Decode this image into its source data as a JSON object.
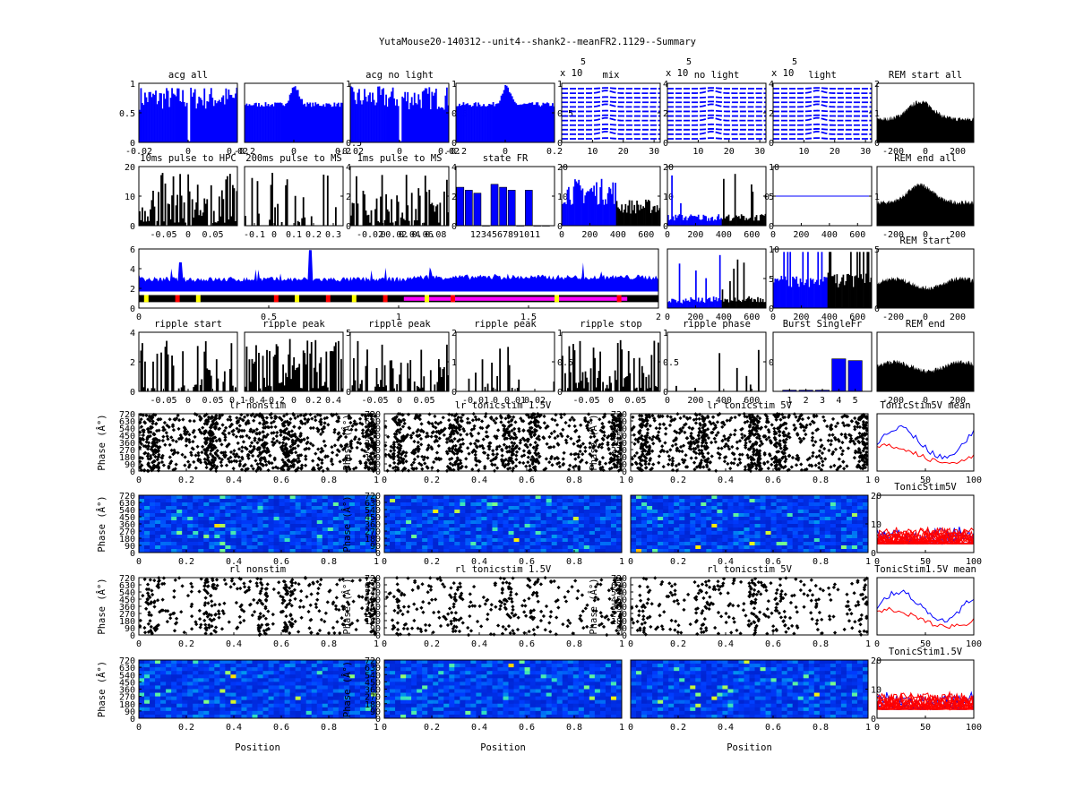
{
  "title": "YutaMouse20-140312--unit4--shank2--meanFR2.1129--Summary",
  "colors": {
    "blue": "#0000ff",
    "black": "#000000",
    "red": "#ff0000",
    "yellow": "#ffff00",
    "magenta": "#ff00ff",
    "darkblue": "#000080",
    "cyan": "#00c0c0"
  },
  "chart_data": [
    {
      "id": "acg_all",
      "type": "bar",
      "title": "acg all",
      "color": "blue",
      "xlim": [
        -0.02,
        0.02
      ],
      "ylim": [
        0,
        1
      ],
      "xticks": [
        "-0.02",
        "0",
        "0.02"
      ],
      "yticks": [
        "0",
        "0.5",
        "1"
      ],
      "shape": "dip"
    },
    {
      "id": "acg_all_wide",
      "type": "bar",
      "title": "",
      "color": "blue",
      "xlim": [
        -0.2,
        0.2
      ],
      "ylim": [
        0,
        1
      ],
      "xticks": [
        "-0.2",
        "0",
        "0.2"
      ],
      "yticks": [],
      "right_yticks": [
        "0.5",
        "1"
      ],
      "shape": "peak"
    },
    {
      "id": "acg_no_light",
      "type": "bar",
      "title": "acg no light",
      "color": "blue",
      "xlim": [
        -0.02,
        0.02
      ],
      "ylim": [
        0,
        1
      ],
      "xticks": [
        "-0.02",
        "0",
        "0.02"
      ],
      "yticks": [],
      "right_yticks": [
        "0",
        "0.5",
        "1"
      ],
      "shape": "dip"
    },
    {
      "id": "acg_no_light_wide",
      "type": "bar",
      "title": "",
      "color": "blue",
      "xlim": [
        -0.2,
        0.2
      ],
      "ylim": [
        0,
        1
      ],
      "xticks": [
        "-0.2",
        "0",
        "0.2"
      ],
      "yticks": [],
      "right_yticks": [
        "0",
        "0.5",
        "1"
      ],
      "shape": "peak"
    },
    {
      "id": "wave_mix",
      "type": "waveform",
      "title": "mix",
      "exponent": "x 10",
      "exp_power": "5",
      "xticks": [
        "10",
        "20",
        "30"
      ],
      "right_yticks": [
        "0",
        "2",
        "4"
      ],
      "ylim": [
        0,
        4
      ],
      "xlim": [
        0,
        32
      ]
    },
    {
      "id": "wave_no_light",
      "type": "waveform",
      "title": "no light",
      "exponent": "x 10",
      "exp_power": "5",
      "xticks": [
        "10",
        "20",
        "30"
      ],
      "right_yticks": [
        "0",
        "2",
        "4"
      ],
      "ylim": [
        0,
        4
      ],
      "xlim": [
        0,
        32
      ]
    },
    {
      "id": "wave_light",
      "type": "waveform",
      "title": "light",
      "exponent": "x 10",
      "exp_power": "5",
      "xticks": [
        "10",
        "20",
        "30"
      ],
      "right_yticks": [
        "0",
        "1",
        "2"
      ],
      "ylim": [
        0,
        2
      ],
      "xlim": [
        0,
        32
      ]
    },
    {
      "id": "rem_start_all",
      "type": "area",
      "title": "REM start all",
      "color": "black",
      "xticks": [
        "-200",
        "0",
        "200"
      ],
      "xlim": [
        -300,
        300
      ],
      "shape": "hump"
    },
    {
      "id": "pulse_hpc",
      "type": "bar",
      "title": "10ms pulse to HPC",
      "color": "black",
      "xlim": [
        -0.1,
        0.1
      ],
      "ylim": [
        0,
        20
      ],
      "xticks": [
        "-0.05",
        "0",
        "0.05"
      ],
      "yticks": [
        "0",
        "10",
        "20"
      ],
      "density": 0.85
    },
    {
      "id": "pulse_ms_200",
      "type": "bar",
      "title": "200ms pulse to MS",
      "color": "black",
      "xlim": [
        -0.15,
        0.35
      ],
      "ylim": [
        0,
        4
      ],
      "xticks": [
        "-0.1",
        "0",
        "0.1",
        "0.2",
        "0.3"
      ],
      "right_yticks": [
        "0",
        "2",
        "4"
      ],
      "density": 0.4
    },
    {
      "id": "pulse_ms_1",
      "type": "bar",
      "title": "1ms pulse to MS",
      "color": "black",
      "xlim": [
        -0.05,
        0.1
      ],
      "ylim": [
        0,
        4
      ],
      "xticks": [
        "-0.02",
        "0",
        "0.02",
        "0.04",
        "0.06",
        "0.08"
      ],
      "right_yticks": [
        "0",
        "2",
        "4"
      ],
      "density": 0.8
    },
    {
      "id": "state_fr",
      "type": "bar",
      "title": "state FR",
      "color": "blue",
      "categories": [
        "1",
        "2",
        "3",
        "4",
        "5",
        "6",
        "7",
        "8",
        "9",
        "10",
        "11"
      ],
      "values": [
        13,
        12,
        11,
        0,
        14,
        13,
        12,
        0,
        12,
        0,
        0
      ],
      "ylim": [
        0,
        20
      ],
      "right_yticks": [
        "0",
        "10",
        "20"
      ],
      "xtick_text": "1234567891011"
    },
    {
      "id": "fr_time_1",
      "type": "bar",
      "title": "",
      "series_colors": [
        "blue",
        "black"
      ],
      "split": 380,
      "xlim": [
        0,
        700
      ],
      "ylim": [
        0,
        20
      ],
      "xticks": [
        "0",
        "200",
        "400",
        "600"
      ],
      "right_yticks": [
        "0",
        "10",
        "20"
      ]
    },
    {
      "id": "fr_time_2",
      "type": "bar",
      "title": "",
      "series_colors": [
        "blue",
        "black"
      ],
      "split": 380,
      "xlim": [
        0,
        700
      ],
      "ylim": [
        0,
        10
      ],
      "xticks": [
        "0",
        "200",
        "400",
        "600"
      ],
      "right_yticks": [
        "0",
        "5",
        "10"
      ]
    },
    {
      "id": "fr_time_3",
      "type": "line",
      "title": "",
      "color": "blue",
      "xlim": [
        0,
        700
      ],
      "ylim": [
        0,
        2
      ],
      "flat_value": 1,
      "xticks": [
        "0",
        "200",
        "400",
        "600"
      ],
      "yticks": [
        "0"
      ],
      "right_yticks": [
        "1"
      ]
    },
    {
      "id": "rem_end_all",
      "type": "area",
      "title": "REM end all",
      "color": "black",
      "xticks": [
        "-200",
        "0",
        "200"
      ],
      "xlim": [
        -300,
        300
      ],
      "shape": "hump"
    },
    {
      "id": "session_trace",
      "type": "area",
      "title": "",
      "color": "blue",
      "xlim": [
        0,
        2
      ],
      "ylim": [
        -1,
        7
      ],
      "xticks": [
        "0",
        "0.5",
        "1",
        "1.5",
        "2"
      ],
      "yticks": [
        "0",
        "2",
        "4",
        "6"
      ],
      "xtick_suffix": "x 10^4"
    },
    {
      "id": "fr_time_4",
      "type": "bar",
      "title": "",
      "series_colors": [
        "blue",
        "black"
      ],
      "split": 380,
      "xlim": [
        0,
        700
      ],
      "ylim": [
        0,
        10
      ],
      "xticks": [
        "0",
        "200",
        "400",
        "600"
      ],
      "right_yticks": [
        "0",
        "5",
        "10"
      ]
    },
    {
      "id": "fr_time_5",
      "type": "bar",
      "title": "",
      "series_colors": [
        "blue",
        "black"
      ],
      "split": 380,
      "xlim": [
        0,
        700
      ],
      "ylim": [
        0,
        5
      ],
      "xticks": [
        "0",
        "200",
        "400",
        "600"
      ],
      "right_yticks": [
        "0",
        "5"
      ]
    },
    {
      "id": "rem_start",
      "type": "area",
      "title": "REM start",
      "color": "black",
      "xticks": [
        "-200",
        "0",
        "200"
      ],
      "xlim": [
        -300,
        300
      ],
      "shape": "flat"
    },
    {
      "id": "ripple_start",
      "type": "bar",
      "title": "ripple start",
      "color": "black",
      "xlim": [
        -0.1,
        0.1
      ],
      "ylim": [
        0,
        4
      ],
      "xticks": [
        "-0.05",
        "0",
        "0.05",
        "0.1"
      ],
      "yticks": [
        "0",
        "2",
        "4"
      ],
      "density": 0.5
    },
    {
      "id": "ripple_peak_1",
      "type": "bar",
      "title": "ripple peak",
      "color": "black",
      "xlim": [
        -0.5,
        0.5
      ],
      "ylim": [
        0,
        5
      ],
      "xticks": [
        "-0.4",
        "-0.2",
        "0",
        "0.2",
        "0.4"
      ],
      "right_yticks": [
        "0",
        "5"
      ],
      "density": 0.8
    },
    {
      "id": "ripple_peak_2",
      "type": "bar",
      "title": "ripple peak",
      "color": "black",
      "xlim": [
        -0.1,
        0.1
      ],
      "ylim": [
        0,
        2
      ],
      "xticks": [
        "-0.05",
        "0",
        "0.05"
      ],
      "right_yticks": [
        "0",
        "1",
        "2"
      ],
      "density": 0.6
    },
    {
      "id": "ripple_peak_3",
      "type": "bar",
      "title": "ripple peak",
      "color": "black",
      "xlim": [
        -0.02,
        0.03
      ],
      "ylim": [
        0,
        1
      ],
      "xticks": [
        "-0.01",
        "0",
        "0.01",
        "0.02"
      ],
      "right_yticks": [
        "0",
        "0.5",
        "1"
      ],
      "density": 0.15
    },
    {
      "id": "ripple_stop",
      "type": "bar",
      "title": "ripple stop",
      "color": "black",
      "xlim": [
        -0.1,
        0.1
      ],
      "ylim": [
        0,
        1
      ],
      "xticks": [
        "-0.05",
        "0",
        "0.05"
      ],
      "right_yticks": [
        "0",
        "0.5",
        "1"
      ],
      "density": 0.7
    },
    {
      "id": "ripple_phase",
      "type": "bar",
      "title": "ripple phase",
      "color": "black",
      "xlim": [
        0,
        700
      ],
      "ylim": [
        0,
        1
      ],
      "xticks": [
        "0",
        "200",
        "400",
        "600"
      ],
      "right_yticks": [
        "0"
      ],
      "density": 0.1
    },
    {
      "id": "burst_single",
      "type": "bar",
      "title": "Burst SingleFr",
      "color": "blue",
      "categories": [
        "1",
        "2",
        "3",
        "4",
        "5"
      ],
      "values": [
        0.02,
        0.02,
        0.02,
        0.55,
        0.52
      ],
      "xlim": [
        0,
        6
      ],
      "ylim": [
        0,
        1
      ],
      "xticks": [
        "1",
        "2",
        "3",
        "4",
        "5"
      ]
    },
    {
      "id": "rem_end",
      "type": "area",
      "title": "REM end",
      "color": "black",
      "xticks": [
        "-200",
        "0",
        "200"
      ],
      "xlim": [
        -300,
        300
      ],
      "shape": "flat"
    },
    {
      "id": "raster_lr_nonstim",
      "type": "scatter",
      "title": "lr nonstim",
      "xlim": [
        0,
        1
      ],
      "ylim": [
        0,
        720
      ],
      "xticks": [
        "0",
        "0.2",
        "0.4",
        "0.6",
        "0.8",
        "1"
      ],
      "yticks": [
        "0",
        "90",
        "180",
        "270",
        "360",
        "450",
        "540",
        "630",
        "720"
      ],
      "ylabel": "Phase (Â°)",
      "density": 1000
    },
    {
      "id": "raster_lr_1_5",
      "type": "scatter",
      "title": "lr tonicstim 1.5V",
      "xlim": [
        0,
        1
      ],
      "ylim": [
        0,
        720
      ],
      "xticks": [
        "0",
        "0.2",
        "0.4",
        "0.6",
        "0.8",
        "1"
      ],
      "yticks": [
        "0",
        "90",
        "180",
        "270",
        "360",
        "450",
        "540",
        "630",
        "720"
      ],
      "ylabel": "Phase (Â°)",
      "density": 850
    },
    {
      "id": "raster_lr_5",
      "type": "scatter",
      "title": "lr tonicstim 5V",
      "xlim": [
        0,
        1
      ],
      "ylim": [
        0,
        720
      ],
      "xticks": [
        "0",
        "0.2",
        "0.4",
        "0.6",
        "0.8",
        "1"
      ],
      "yticks": [
        "0",
        "90",
        "180",
        "270",
        "360",
        "450",
        "540",
        "630",
        "720"
      ],
      "ylabel": "Phase (Â°)",
      "density": 900
    },
    {
      "id": "mean_5v",
      "type": "line",
      "title": "TonicStim5V mean",
      "series": [
        {
          "color": "blue"
        },
        {
          "color": "red"
        }
      ],
      "xlim": [
        0,
        100
      ],
      "xticks": [
        "0",
        "50",
        "100"
      ]
    },
    {
      "id": "heat_lr_nonstim",
      "type": "heatmap",
      "title": "",
      "xlim": [
        0,
        1
      ],
      "ylim": [
        0,
        720
      ],
      "xticks": [
        "0",
        "0.2",
        "0.4",
        "0.6",
        "0.8",
        "1"
      ],
      "yticks": [
        "0",
        "90",
        "180",
        "270",
        "360",
        "450",
        "540",
        "630",
        "720"
      ],
      "ylabel": "Phase (Â°)"
    },
    {
      "id": "heat_lr_1_5",
      "type": "heatmap",
      "title": "",
      "xlim": [
        0,
        1
      ],
      "ylim": [
        0,
        720
      ],
      "xticks": [
        "0",
        "0.2",
        "0.4",
        "0.6",
        "0.8",
        "1"
      ],
      "yticks": [
        "0",
        "90",
        "180",
        "270",
        "360",
        "450",
        "540",
        "630",
        "720"
      ],
      "ylabel": "Phase (Â°)"
    },
    {
      "id": "heat_lr_5",
      "type": "heatmap",
      "title": "",
      "xlim": [
        0,
        1
      ],
      "ylim": [
        0,
        720
      ],
      "xticks": [
        "0",
        "0.2",
        "0.4",
        "0.6",
        "0.8",
        "1"
      ],
      "yticks": [],
      "right_yticks": [
        "0",
        "10",
        "20"
      ]
    },
    {
      "id": "trials_5v",
      "type": "line",
      "title": "TonicStim5V",
      "series": [
        {
          "color": "blue"
        },
        {
          "color": "red"
        }
      ],
      "xlim": [
        0,
        100
      ],
      "xticks": [
        "0",
        "50",
        "100"
      ]
    },
    {
      "id": "raster_rl_nonstim",
      "type": "scatter",
      "title": "rl nonstim",
      "xlim": [
        0,
        1
      ],
      "ylim": [
        0,
        720
      ],
      "xticks": [
        "0",
        "0.2",
        "0.4",
        "0.6",
        "0.8",
        "1"
      ],
      "yticks": [
        "0",
        "90",
        "180",
        "270",
        "360",
        "450",
        "540",
        "630",
        "720"
      ],
      "ylabel": "Phase (Â°)",
      "density": 420
    },
    {
      "id": "raster_rl_1_5",
      "type": "scatter",
      "title": "rl tonicstim 1.5V",
      "xlim": [
        0,
        1
      ],
      "ylim": [
        0,
        720
      ],
      "xticks": [
        "0",
        "0.2",
        "0.4",
        "0.6",
        "0.8",
        "1"
      ],
      "yticks": [
        "0",
        "90",
        "180",
        "270",
        "360",
        "450",
        "540",
        "630",
        "720"
      ],
      "ylabel": "Phase (Â°)",
      "density": 330
    },
    {
      "id": "raster_rl_5",
      "type": "scatter",
      "title": "rl tonicstim 5V",
      "xlim": [
        0,
        1
      ],
      "ylim": [
        0,
        720
      ],
      "xticks": [
        "0",
        "0.2",
        "0.4",
        "0.6",
        "0.8",
        "1"
      ],
      "yticks": [
        "0",
        "90",
        "180",
        "270",
        "360",
        "450",
        "540",
        "630",
        "720"
      ],
      "ylabel": "Phase (Â°)",
      "density": 330
    },
    {
      "id": "mean_1_5v",
      "type": "line",
      "title": "TonicStim1.5V mean",
      "series": [
        {
          "color": "blue"
        },
        {
          "color": "red"
        }
      ],
      "xlim": [
        0,
        100
      ],
      "xticks": [
        "0",
        "50",
        "100"
      ]
    },
    {
      "id": "heat_rl_nonstim",
      "type": "heatmap",
      "title": "",
      "xlim": [
        0,
        1
      ],
      "ylim": [
        0,
        720
      ],
      "xticks": [
        "0",
        "0.2",
        "0.4",
        "0.6",
        "0.8",
        "1"
      ],
      "yticks": [
        "0",
        "90",
        "180",
        "270",
        "360",
        "450",
        "540",
        "630",
        "720"
      ],
      "ylabel": "Phase (Â°)",
      "xlabel": "Position"
    },
    {
      "id": "heat_rl_1_5",
      "type": "heatmap",
      "title": "",
      "xlim": [
        0,
        1
      ],
      "ylim": [
        0,
        720
      ],
      "xticks": [
        "0",
        "0.2",
        "0.4",
        "0.6",
        "0.8",
        "1"
      ],
      "yticks": [
        "0",
        "90",
        "180",
        "270",
        "360",
        "450",
        "540",
        "630",
        "720"
      ],
      "ylabel": "Phase (Â°)",
      "xlabel": "Position"
    },
    {
      "id": "heat_rl_5",
      "type": "heatmap",
      "title": "",
      "xlim": [
        0,
        1
      ],
      "ylim": [
        0,
        720
      ],
      "xticks": [
        "0",
        "0.2",
        "0.4",
        "0.6",
        "0.8",
        "1"
      ],
      "yticks": [],
      "right_yticks": [
        "0",
        "10",
        "20"
      ],
      "xlabel": "Position"
    },
    {
      "id": "trials_1_5v",
      "type": "line",
      "title": "TonicStim1.5V",
      "series": [
        {
          "color": "blue"
        },
        {
          "color": "red"
        }
      ],
      "xlim": [
        0,
        100
      ],
      "xticks": [
        "0",
        "50",
        "100"
      ]
    }
  ]
}
